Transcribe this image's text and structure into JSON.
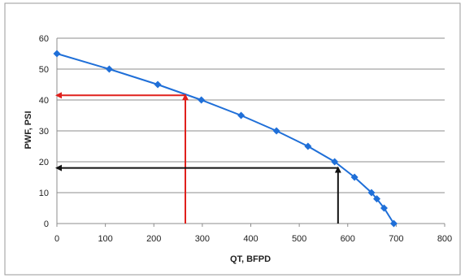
{
  "chart_data": {
    "type": "line",
    "title": "",
    "xlabel": "QT, BFPD",
    "ylabel": "PWF, PSI",
    "xlim": [
      0,
      800
    ],
    "ylim": [
      0,
      60
    ],
    "x_ticks": [
      0,
      100,
      200,
      300,
      400,
      500,
      600,
      700,
      800
    ],
    "y_ticks": [
      0,
      10,
      20,
      30,
      40,
      50,
      60
    ],
    "grid": "horizontal",
    "legend": "none",
    "series": [
      {
        "x": [
          0,
          108,
          208,
          298,
          380,
          453,
          518,
          573,
          614,
          649,
          660,
          675,
          695
        ],
        "y": [
          55,
          50,
          45,
          40,
          35,
          30,
          25,
          20,
          15,
          10,
          8,
          5,
          0
        ],
        "color": "#1f6fd8",
        "marker": "diamond"
      }
    ],
    "annotations": [
      {
        "kind": "arrow",
        "color": "#e0201c",
        "from": [
          265,
          0
        ],
        "to": [
          265,
          41.5
        ]
      },
      {
        "kind": "arrow",
        "color": "#e0201c",
        "from": [
          265,
          41.5
        ],
        "to": [
          0,
          41.5
        ]
      },
      {
        "kind": "arrow",
        "color": "#111111",
        "from": [
          580,
          0
        ],
        "to": [
          580,
          18
        ]
      },
      {
        "kind": "arrow",
        "color": "#111111",
        "from": [
          580,
          18
        ],
        "to": [
          0,
          18
        ]
      }
    ]
  }
}
